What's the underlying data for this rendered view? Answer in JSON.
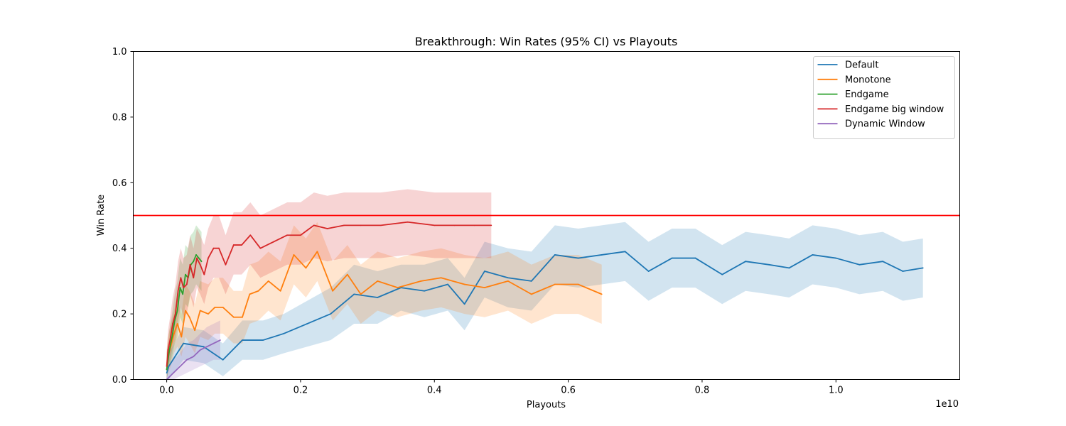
{
  "chart_data": {
    "type": "line",
    "title": "Breakthrough: Win Rates (95% CI) vs Playouts",
    "xlabel": "Playouts",
    "ylabel": "Win Rate",
    "x_scale_label": "1e10",
    "x_scale": 10000000000,
    "xlim": [
      -0.05,
      1.185
    ],
    "ylim": [
      0,
      1.0
    ],
    "x_ticks": [
      0.0,
      0.2,
      0.4,
      0.6,
      0.8,
      1.0
    ],
    "x_tick_labels": [
      "0.0",
      "0.2",
      "0.4",
      "0.6",
      "0.8",
      "1.0"
    ],
    "y_ticks": [
      0.0,
      0.2,
      0.4,
      0.6,
      0.8,
      1.0
    ],
    "y_tick_labels": [
      "0.0",
      "0.2",
      "0.4",
      "0.6",
      "0.8",
      "1.0"
    ],
    "grid": false,
    "legend_position": "top-right",
    "reference_line": {
      "y": 0.5,
      "color": "#ff0000"
    },
    "series": [
      {
        "name": "Default",
        "color": "#1f77b4",
        "x": [
          0.0,
          0.003,
          0.025,
          0.055,
          0.084,
          0.113,
          0.144,
          0.175,
          0.21,
          0.245,
          0.28,
          0.315,
          0.35,
          0.385,
          0.42,
          0.445,
          0.475,
          0.51,
          0.545,
          0.58,
          0.615,
          0.65,
          0.685,
          0.72,
          0.755,
          0.79,
          0.83,
          0.865,
          0.9,
          0.93,
          0.965,
          1.0,
          1.035,
          1.07,
          1.1,
          1.13
        ],
        "y": [
          0.02,
          0.04,
          0.11,
          0.1,
          0.06,
          0.12,
          0.12,
          0.14,
          0.17,
          0.2,
          0.26,
          0.25,
          0.28,
          0.27,
          0.29,
          0.23,
          0.33,
          0.31,
          0.3,
          0.38,
          0.37,
          0.38,
          0.39,
          0.33,
          0.37,
          0.37,
          0.32,
          0.36,
          0.35,
          0.34,
          0.38,
          0.37,
          0.35,
          0.36,
          0.33,
          0.34
        ],
        "lower": [
          0.0,
          0.0,
          0.06,
          0.05,
          0.01,
          0.06,
          0.06,
          0.08,
          0.1,
          0.12,
          0.17,
          0.17,
          0.21,
          0.19,
          0.21,
          0.15,
          0.25,
          0.22,
          0.21,
          0.29,
          0.28,
          0.29,
          0.3,
          0.24,
          0.28,
          0.28,
          0.23,
          0.27,
          0.26,
          0.25,
          0.29,
          0.28,
          0.26,
          0.27,
          0.24,
          0.25
        ],
        "upper": [
          0.05,
          0.08,
          0.16,
          0.15,
          0.11,
          0.18,
          0.18,
          0.2,
          0.24,
          0.28,
          0.35,
          0.33,
          0.35,
          0.35,
          0.37,
          0.31,
          0.42,
          0.4,
          0.39,
          0.47,
          0.46,
          0.47,
          0.48,
          0.42,
          0.46,
          0.46,
          0.41,
          0.45,
          0.44,
          0.43,
          0.47,
          0.46,
          0.44,
          0.45,
          0.42,
          0.43
        ]
      },
      {
        "name": "Monotone",
        "color": "#ff7f0e",
        "x": [
          0.0,
          0.002,
          0.006,
          0.011,
          0.016,
          0.022,
          0.028,
          0.034,
          0.042,
          0.05,
          0.062,
          0.072,
          0.084,
          0.1,
          0.113,
          0.124,
          0.137,
          0.152,
          0.17,
          0.19,
          0.208,
          0.225,
          0.248,
          0.27,
          0.29,
          0.315,
          0.345,
          0.38,
          0.41,
          0.445,
          0.475,
          0.51,
          0.545,
          0.58,
          0.615,
          0.65
        ],
        "y": [
          0.03,
          0.07,
          0.1,
          0.14,
          0.17,
          0.13,
          0.21,
          0.19,
          0.15,
          0.21,
          0.2,
          0.22,
          0.22,
          0.19,
          0.19,
          0.26,
          0.27,
          0.3,
          0.27,
          0.38,
          0.34,
          0.39,
          0.27,
          0.32,
          0.26,
          0.3,
          0.28,
          0.3,
          0.31,
          0.29,
          0.28,
          0.3,
          0.26,
          0.29,
          0.29,
          0.26
        ],
        "lower": [
          0.0,
          0.02,
          0.04,
          0.08,
          0.1,
          0.07,
          0.13,
          0.11,
          0.08,
          0.13,
          0.12,
          0.14,
          0.14,
          0.11,
          0.11,
          0.17,
          0.18,
          0.21,
          0.18,
          0.29,
          0.25,
          0.3,
          0.18,
          0.23,
          0.17,
          0.21,
          0.19,
          0.21,
          0.22,
          0.2,
          0.19,
          0.21,
          0.17,
          0.2,
          0.2,
          0.17
        ],
        "upper": [
          0.08,
          0.13,
          0.17,
          0.21,
          0.25,
          0.2,
          0.29,
          0.27,
          0.23,
          0.3,
          0.29,
          0.31,
          0.31,
          0.27,
          0.27,
          0.35,
          0.36,
          0.39,
          0.36,
          0.47,
          0.43,
          0.48,
          0.36,
          0.41,
          0.35,
          0.39,
          0.37,
          0.39,
          0.4,
          0.38,
          0.37,
          0.39,
          0.35,
          0.38,
          0.38,
          0.35
        ]
      },
      {
        "name": "Endgame",
        "color": "#2ca02c",
        "x": [
          0.0,
          0.004,
          0.008,
          0.012,
          0.016,
          0.02,
          0.024,
          0.028,
          0.032,
          0.036,
          0.04,
          0.044,
          0.048,
          0.052
        ],
        "y": [
          0.03,
          0.09,
          0.13,
          0.18,
          0.21,
          0.28,
          0.26,
          0.32,
          0.31,
          0.35,
          0.36,
          0.38,
          0.37,
          0.36
        ],
        "lower": [
          0.0,
          0.04,
          0.07,
          0.11,
          0.13,
          0.19,
          0.17,
          0.23,
          0.22,
          0.26,
          0.27,
          0.29,
          0.28,
          0.27
        ],
        "upper": [
          0.08,
          0.15,
          0.2,
          0.26,
          0.3,
          0.37,
          0.35,
          0.41,
          0.4,
          0.44,
          0.45,
          0.47,
          0.46,
          0.45
        ]
      },
      {
        "name": "Endgame big window",
        "color": "#d62728",
        "x": [
          0.0,
          0.002,
          0.005,
          0.009,
          0.013,
          0.017,
          0.021,
          0.025,
          0.03,
          0.035,
          0.04,
          0.045,
          0.05,
          0.056,
          0.062,
          0.07,
          0.078,
          0.088,
          0.1,
          0.112,
          0.125,
          0.14,
          0.16,
          0.18,
          0.2,
          0.22,
          0.24,
          0.265,
          0.29,
          0.32,
          0.36,
          0.4,
          0.43,
          0.46,
          0.485
        ],
        "y": [
          0.04,
          0.09,
          0.12,
          0.17,
          0.2,
          0.27,
          0.31,
          0.28,
          0.29,
          0.35,
          0.31,
          0.37,
          0.35,
          0.32,
          0.37,
          0.4,
          0.4,
          0.35,
          0.41,
          0.41,
          0.44,
          0.4,
          0.42,
          0.44,
          0.44,
          0.47,
          0.46,
          0.47,
          0.47,
          0.47,
          0.48,
          0.47,
          0.47,
          0.47,
          0.47
        ],
        "lower": [
          0.0,
          0.04,
          0.06,
          0.1,
          0.12,
          0.18,
          0.22,
          0.19,
          0.2,
          0.26,
          0.22,
          0.28,
          0.26,
          0.23,
          0.28,
          0.31,
          0.31,
          0.26,
          0.32,
          0.32,
          0.35,
          0.31,
          0.33,
          0.35,
          0.35,
          0.37,
          0.36,
          0.37,
          0.37,
          0.37,
          0.38,
          0.37,
          0.37,
          0.37,
          0.37
        ],
        "upper": [
          0.09,
          0.15,
          0.19,
          0.25,
          0.29,
          0.36,
          0.4,
          0.37,
          0.38,
          0.44,
          0.4,
          0.46,
          0.44,
          0.41,
          0.46,
          0.5,
          0.5,
          0.44,
          0.51,
          0.51,
          0.54,
          0.5,
          0.52,
          0.54,
          0.54,
          0.57,
          0.56,
          0.57,
          0.57,
          0.57,
          0.58,
          0.57,
          0.57,
          0.57,
          0.57
        ]
      },
      {
        "name": "Dynamic Window",
        "color": "#9467bd",
        "x": [
          0.0,
          0.01,
          0.02,
          0.03,
          0.04,
          0.05,
          0.06,
          0.07,
          0.08
        ],
        "y": [
          0.0,
          0.02,
          0.04,
          0.06,
          0.07,
          0.09,
          0.1,
          0.11,
          0.12
        ],
        "lower": [
          0.0,
          0.0,
          0.01,
          0.02,
          0.03,
          0.04,
          0.05,
          0.06,
          0.06
        ],
        "upper": [
          0.03,
          0.06,
          0.08,
          0.11,
          0.12,
          0.14,
          0.16,
          0.17,
          0.18
        ]
      }
    ]
  }
}
